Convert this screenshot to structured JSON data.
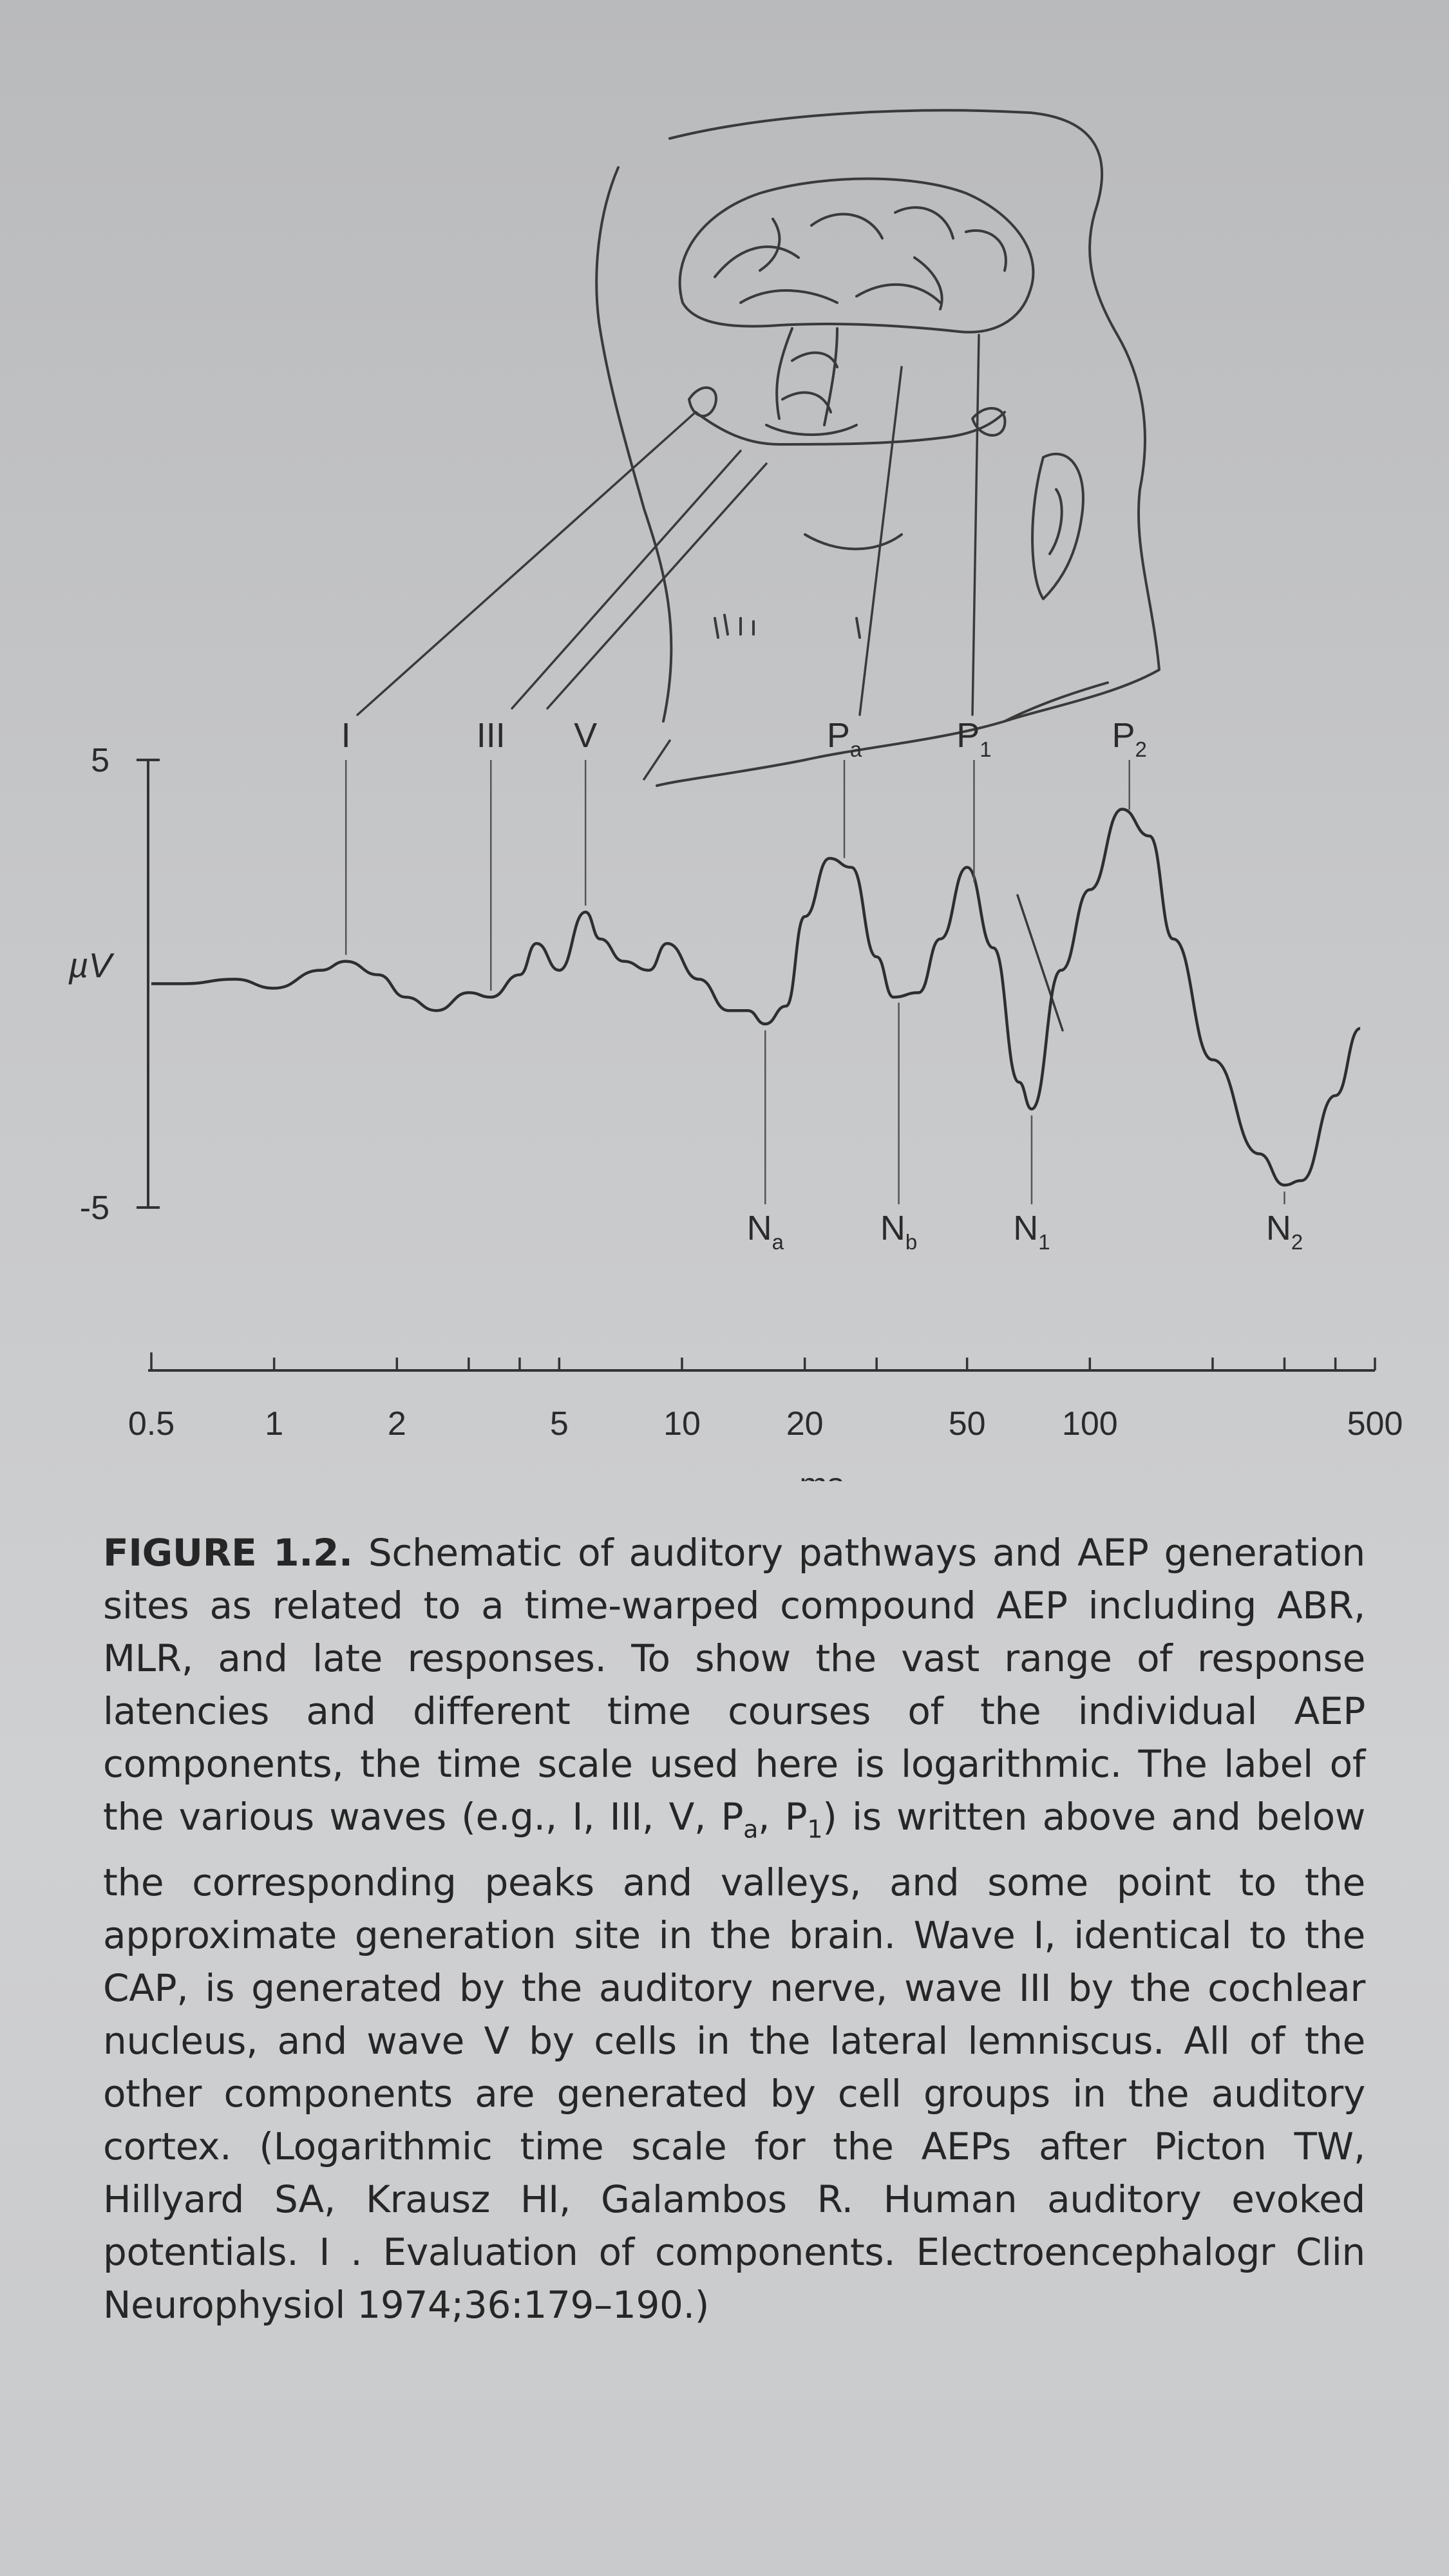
{
  "figure": {
    "y_axis": {
      "unit": "µV",
      "ticks": [
        {
          "value": 5,
          "label": "5"
        },
        {
          "value": -5,
          "label": "-5"
        }
      ]
    },
    "x_axis": {
      "label": "ms",
      "scale": "log",
      "tick_labels": [
        "0.5",
        "1",
        "2",
        "5",
        "10",
        "20",
        "50",
        "100",
        "500"
      ]
    },
    "peaks": {
      "I": {
        "main": "I",
        "sub": ""
      },
      "III": {
        "main": "III",
        "sub": ""
      },
      "V": {
        "main": "V",
        "sub": ""
      },
      "Pa": {
        "main": "P",
        "sub": "a"
      },
      "P1": {
        "main": "P",
        "sub": "1"
      },
      "P2": {
        "main": "P",
        "sub": "2"
      }
    },
    "valleys": {
      "Na": {
        "main": "N",
        "sub": "a"
      },
      "Nb": {
        "main": "N",
        "sub": "b"
      },
      "N1": {
        "main": "N",
        "sub": "1"
      },
      "N2": {
        "main": "N",
        "sub": "2"
      }
    }
  },
  "chart_data": {
    "type": "line",
    "xlabel": "ms",
    "ylabel": "µV",
    "xscale": "log",
    "xlim": [
      0.5,
      500
    ],
    "ylim": [
      -5,
      5
    ],
    "series": [
      {
        "points": [
          [
            0.5,
            0.0
          ],
          [
            0.6,
            0.0
          ],
          [
            0.8,
            0.1
          ],
          [
            1.0,
            -0.1
          ],
          [
            1.3,
            0.3
          ],
          [
            1.5,
            0.5
          ],
          [
            1.8,
            0.2
          ],
          [
            2.1,
            -0.3
          ],
          [
            2.5,
            -0.6
          ],
          [
            3.0,
            -0.2
          ],
          [
            3.4,
            -0.3
          ],
          [
            4.0,
            0.2
          ],
          [
            4.4,
            0.9
          ],
          [
            5.0,
            0.3
          ],
          [
            5.8,
            1.6
          ],
          [
            6.3,
            1.0
          ],
          [
            7.2,
            0.5
          ],
          [
            8.3,
            0.3
          ],
          [
            9.2,
            0.9
          ],
          [
            11,
            0.1
          ],
          [
            13,
            -0.6
          ],
          [
            14.5,
            -0.6
          ],
          [
            16,
            -0.9
          ],
          [
            18,
            -0.5
          ],
          [
            20,
            1.5
          ],
          [
            23,
            2.8
          ],
          [
            26,
            2.6
          ],
          [
            30,
            0.6
          ],
          [
            33,
            -0.3
          ],
          [
            38,
            -0.2
          ],
          [
            43,
            1.0
          ],
          [
            50,
            2.6
          ],
          [
            58,
            0.8
          ],
          [
            67,
            -2.2
          ],
          [
            72,
            -2.8
          ],
          [
            85,
            0.3
          ],
          [
            100,
            2.1
          ],
          [
            120,
            3.9
          ],
          [
            140,
            3.3
          ],
          [
            160,
            1.0
          ],
          [
            200,
            -1.7
          ],
          [
            260,
            -3.8
          ],
          [
            300,
            -4.5
          ],
          [
            330,
            -4.4
          ],
          [
            400,
            -2.5
          ],
          [
            460,
            -1.0
          ]
        ]
      }
    ],
    "peak_labels": [
      {
        "name": "I",
        "x": 1.5
      },
      {
        "name": "III",
        "x": 3.4
      },
      {
        "name": "V",
        "x": 5.8
      },
      {
        "name": "Pa",
        "x": 25
      },
      {
        "name": "P1",
        "x": 52
      },
      {
        "name": "P2",
        "x": 125
      }
    ],
    "valley_labels": [
      {
        "name": "Na",
        "x": 16
      },
      {
        "name": "Nb",
        "x": 34
      },
      {
        "name": "N1",
        "x": 72
      },
      {
        "name": "N2",
        "x": 300
      }
    ]
  },
  "caption": {
    "label": "FIGURE 1.2.",
    "part1": " Schematic of auditory pathways and AEP generation sites as related to a time-warped compound AEP including ABR, MLR, and late responses. To show the vast range of response latencies and different time courses of the individual AEP components, the time scale used here is logarithmic. The label of the various waves (e.g., I, III, V, P",
    "sub_a": "a",
    "part2": ", P",
    "sub_1": "1",
    "part3": ") is written above and below the corresponding peaks and valleys, and some point to the approximate generation site in the brain. Wave I, identical to the CAP, is generated by the auditory nerve, wave III by the cochlear nucleus, and wave V by cells in the lateral lemniscus. All of the other components are generated by cell groups in the auditory cortex. (Logarithmic time scale for the AEPs after Picton TW, Hillyard SA, Krausz HI, Galambos R. Human auditory evoked potentials. I . Evaluation of components. Electroencephalogr Clin Neurophysiol 1974;36:179–190.)"
  },
  "colors": {
    "page": "#c6c7c9",
    "ink": "#2a2a2a"
  }
}
